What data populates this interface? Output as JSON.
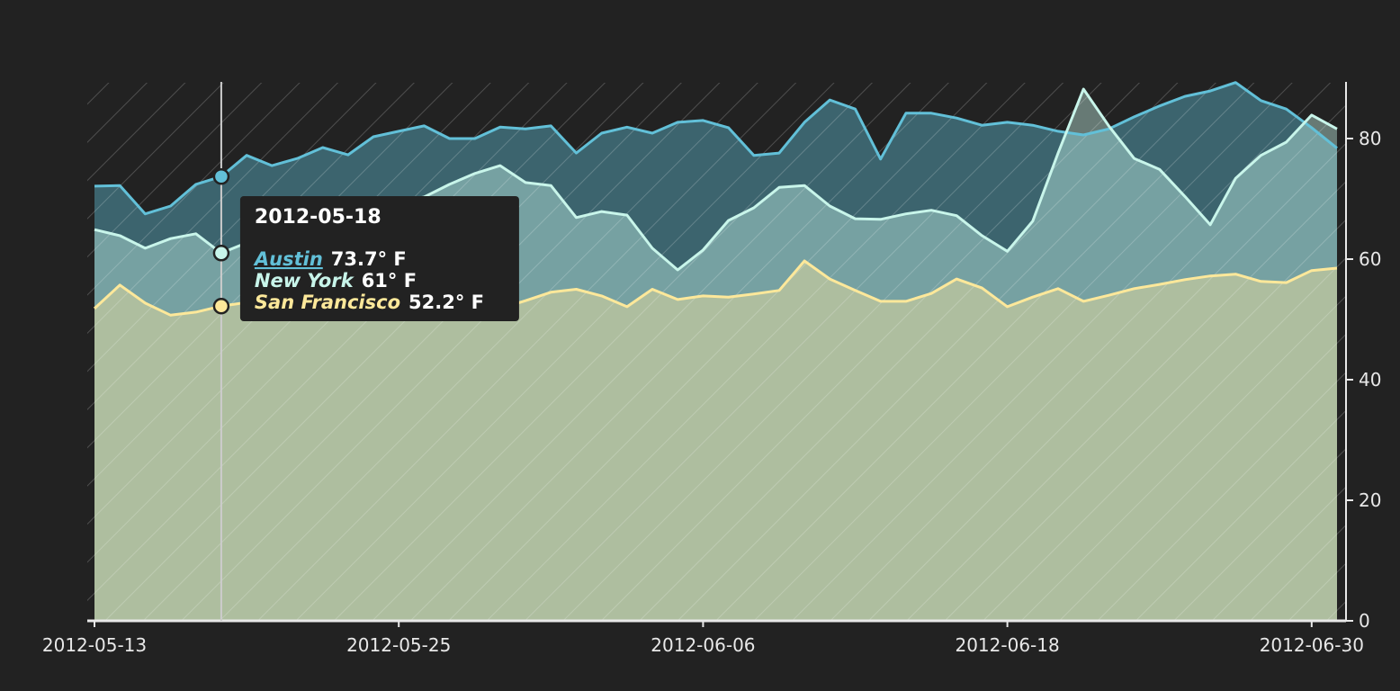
{
  "chart_data": {
    "type": "area",
    "x": [
      "2012-05-13",
      "2012-05-14",
      "2012-05-15",
      "2012-05-16",
      "2012-05-17",
      "2012-05-18",
      "2012-05-19",
      "2012-05-20",
      "2012-05-21",
      "2012-05-22",
      "2012-05-23",
      "2012-05-24",
      "2012-05-25",
      "2012-05-26",
      "2012-05-27",
      "2012-05-28",
      "2012-05-29",
      "2012-05-30",
      "2012-05-31",
      "2012-06-01",
      "2012-06-02",
      "2012-06-03",
      "2012-06-04",
      "2012-06-05",
      "2012-06-06",
      "2012-06-07",
      "2012-06-08",
      "2012-06-09",
      "2012-06-10",
      "2012-06-11",
      "2012-06-12",
      "2012-06-13",
      "2012-06-14",
      "2012-06-15",
      "2012-06-16",
      "2012-06-17",
      "2012-06-18",
      "2012-06-19",
      "2012-06-20",
      "2012-06-21",
      "2012-06-22",
      "2012-06-23",
      "2012-06-24",
      "2012-06-25",
      "2012-06-26",
      "2012-06-27",
      "2012-06-28",
      "2012-06-29",
      "2012-06-30",
      "2012-07-01"
    ],
    "series": [
      {
        "name": "Austin",
        "color": "#62c0d8",
        "values": [
          72.1,
          72.2,
          67.5,
          68.8,
          72.4,
          73.7,
          77.2,
          75.5,
          76.7,
          78.5,
          77.3,
          80.3,
          81.2,
          82.1,
          80.0,
          80.0,
          81.9,
          81.6,
          82.1,
          77.6,
          80.9,
          81.9,
          80.9,
          82.7,
          83.0,
          81.8,
          77.2,
          77.6,
          82.7,
          86.4,
          84.9,
          76.6,
          84.2,
          84.2,
          83.4,
          82.2,
          82.7,
          82.2,
          81.2,
          80.6,
          81.6,
          83.6,
          85.4,
          87.0,
          87.9,
          89.3,
          86.3,
          84.9,
          81.8,
          78.4
        ]
      },
      {
        "name": "New York",
        "color": "#c8f5ea",
        "values": [
          64.9,
          63.9,
          61.8,
          63.4,
          64.2,
          61.0,
          62.7,
          63.5,
          64.8,
          66.0,
          67.4,
          68.6,
          69.5,
          70.3,
          72.4,
          74.2,
          75.5,
          72.7,
          72.2,
          66.9,
          67.9,
          67.3,
          61.8,
          58.2,
          61.5,
          66.4,
          68.5,
          71.9,
          72.2,
          68.8,
          66.7,
          66.6,
          67.5,
          68.1,
          67.2,
          63.9,
          61.3,
          66.3,
          77.6,
          88.2,
          82.1,
          76.7,
          74.9,
          70.4,
          65.7,
          73.4,
          77.2,
          79.4,
          83.9,
          81.6
        ]
      },
      {
        "name": "San Francisco",
        "color": "#fde89a",
        "values": [
          51.8,
          55.7,
          52.7,
          50.7,
          51.2,
          52.2,
          52.8,
          53.5,
          52.4,
          53.0,
          54.1,
          52.6,
          53.4,
          52.0,
          52.9,
          51.8,
          51.8,
          53.1,
          54.5,
          55.0,
          53.9,
          52.1,
          55.0,
          53.3,
          53.9,
          53.7,
          54.2,
          54.8,
          59.7,
          56.7,
          54.8,
          53.0,
          53.0,
          54.3,
          56.7,
          55.2,
          52.1,
          53.7,
          55.1,
          53.0,
          54.0,
          55.1,
          55.8,
          56.6,
          57.2,
          57.5,
          56.3,
          56.1,
          58.1,
          58.5
        ]
      }
    ],
    "xlim": [
      "2012-05-13",
      "2012-07-01"
    ],
    "xticks": [
      "2012-05-13",
      "2012-05-25",
      "2012-06-06",
      "2012-06-18",
      "2012-06-30"
    ],
    "ylim": [
      0,
      89.4
    ],
    "yticks": [
      0,
      20,
      40,
      60,
      80
    ],
    "tooltip": {
      "date": "2012-05-18",
      "value_labels": [
        "73.7° F",
        "61° F",
        "52.2° F"
      ]
    }
  }
}
